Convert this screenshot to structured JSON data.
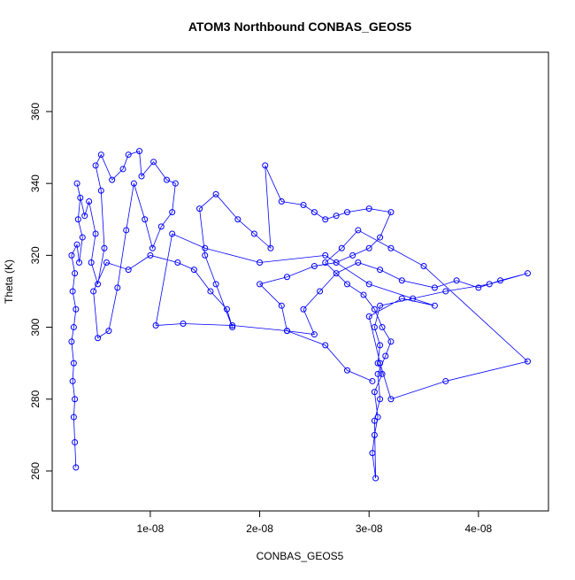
{
  "chart_data": {
    "type": "line",
    "title": "ATOM3 Northbound CONBAS_GEOS5",
    "xlabel": "CONBAS_GEOS5",
    "ylabel": "Theta (K)",
    "color": "#0000ff",
    "marker": "circle",
    "xlim": [
      1.03e-09,
      4.64e-08
    ],
    "ylim": [
      248.9,
      376.5
    ],
    "xticks": [
      {
        "value": 1e-08,
        "label": "1e-08"
      },
      {
        "value": 2e-08,
        "label": "2e-08"
      },
      {
        "value": 3e-08,
        "label": "3e-08"
      },
      {
        "value": 4e-08,
        "label": "4e-08"
      }
    ],
    "yticks": [
      260,
      280,
      300,
      320,
      340,
      360
    ],
    "x": [
      3.2e-09,
      3.1e-09,
      3e-09,
      3.1e-09,
      2.9e-09,
      3e-09,
      2.8e-09,
      3e-09,
      3.2e-09,
      2.9e-09,
      3.1e-09,
      2.8e-09,
      3.3e-09,
      3.5e-09,
      3.8e-09,
      3.4e-09,
      3.6e-09,
      3.3e-09,
      4e-09,
      4.4e-09,
      5e-09,
      4.6e-09,
      5.2e-09,
      5.8e-09,
      5.5e-09,
      5e-09,
      5.5e-09,
      6.5e-09,
      7.5e-09,
      8e-09,
      9e-09,
      9.2e-09,
      1.03e-08,
      1.15e-08,
      1.23e-08,
      1.2e-08,
      1.1e-08,
      1.02e-08,
      9.5e-09,
      8.5e-09,
      7.8e-09,
      7e-09,
      6.2e-09,
      5.2e-09,
      4.8e-09,
      6e-09,
      8e-09,
      1e-08,
      1.25e-08,
      1.4e-08,
      1.55e-08,
      1.7e-08,
      1.75e-08,
      1.6e-08,
      1.5e-08,
      1.45e-08,
      1.6e-08,
      1.8e-08,
      1.95e-08,
      2.1e-08,
      2.05e-08,
      2.2e-08,
      2.4e-08,
      2.5e-08,
      2.6e-08,
      2.7e-08,
      2.8e-08,
      3e-08,
      3.2e-08,
      3.1e-08,
      3e-08,
      2.85e-08,
      2.7e-08,
      2.5e-08,
      2.25e-08,
      2e-08,
      2.2e-08,
      2.25e-08,
      2.5e-08,
      2.4e-08,
      2.55e-08,
      2.7e-08,
      2.9e-08,
      3.1e-08,
      3.3e-08,
      3.6e-08,
      3.8e-08,
      4e-08,
      4.2e-08,
      4.45e-08,
      4.1e-08,
      3.7e-08,
      3.4e-08,
      3.1e-08,
      3.05e-08,
      3.1e-08,
      3.08e-08,
      3.12e-08,
      3.05e-08,
      3.08e-08,
      3.05e-08,
      3.03e-08,
      3.06e-08,
      3.05e-08,
      3.1e-08,
      3.08e-08,
      3.15e-08,
      3.2e-08,
      3.12e-08,
      3.05e-08,
      2.95e-08,
      2.8e-08,
      2.6e-08,
      2.75e-08,
      2.9e-08,
      3.2e-08,
      3.5e-08,
      4.45e-08,
      3.7e-08,
      3.2e-08,
      3.1e-08,
      3e-08,
      3.3e-08,
      3.6e-08,
      3e-08,
      2.6e-08,
      2e-08,
      1.5e-08,
      1.2e-08,
      1.05e-08,
      1.3e-08,
      1.75e-08,
      2.25e-08,
      2.6e-08,
      2.8e-08,
      3.03e-08
    ],
    "values": [
      261,
      268,
      275,
      280,
      285,
      290,
      296,
      300,
      305,
      310,
      315,
      320,
      323,
      318,
      325,
      330,
      336,
      340,
      331,
      335,
      326,
      318,
      312,
      322,
      338,
      345,
      348,
      341,
      344,
      348,
      349,
      342,
      346,
      341,
      340,
      332,
      328,
      322,
      330,
      340,
      327,
      311,
      299,
      297,
      310,
      318,
      316,
      320,
      318,
      316,
      310,
      305,
      300,
      312,
      320,
      333,
      337,
      330,
      326,
      322,
      345,
      335,
      334,
      332,
      330,
      331,
      332,
      333,
      332,
      325,
      322,
      320,
      318,
      317,
      314,
      312,
      306,
      299,
      298,
      305,
      310,
      315,
      318,
      316,
      313,
      311,
      313,
      311,
      313,
      315,
      312,
      310,
      308,
      306,
      300,
      295,
      290,
      287,
      282,
      275,
      270,
      265,
      258,
      274,
      280,
      287,
      292,
      296,
      300,
      305,
      309,
      312,
      318,
      322,
      327,
      322,
      317,
      290.5,
      285,
      280,
      290,
      303,
      308,
      306,
      312,
      320,
      318,
      322,
      326,
      300.5,
      301,
      300.5,
      299,
      295,
      288,
      285
    ]
  }
}
